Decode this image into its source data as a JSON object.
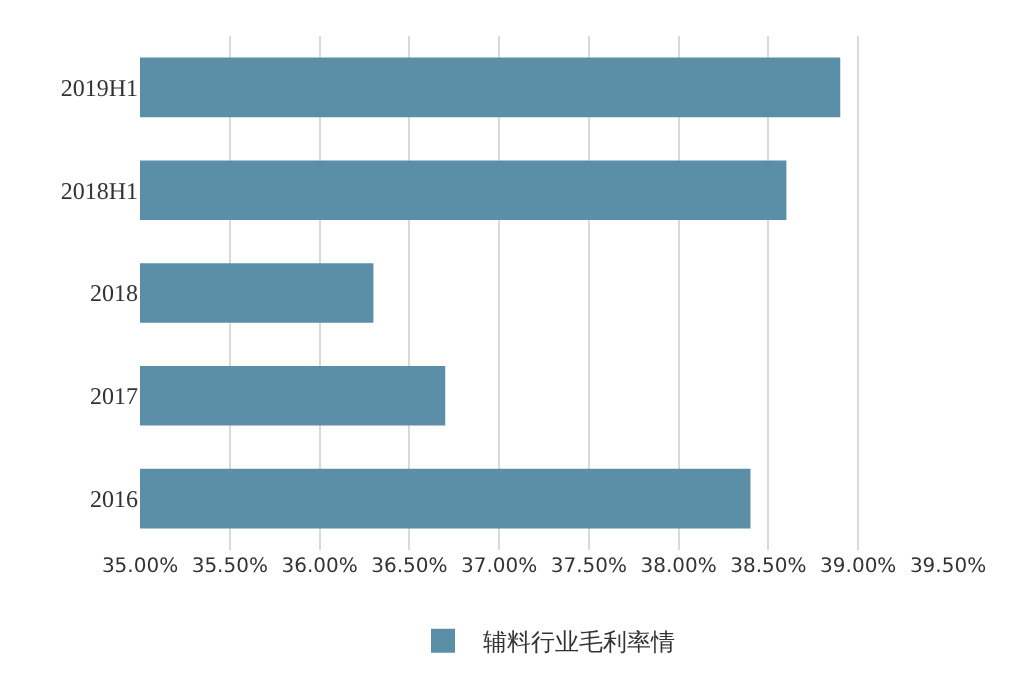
{
  "chart_data": {
    "type": "bar",
    "orientation": "horizontal",
    "categories": [
      "2019H1",
      "2018H1",
      "2018",
      "2017",
      "2016"
    ],
    "series": [
      {
        "name": "辅料行业毛利率情",
        "color": "#5b8fa8",
        "values": [
          38.9,
          38.6,
          36.3,
          36.7,
          38.4
        ]
      }
    ],
    "xlim": [
      35,
      39.5
    ],
    "xticks": [
      {
        "value": 35,
        "label": "35.00%"
      },
      {
        "value": 35.5,
        "label": "35.50%"
      },
      {
        "value": 36,
        "label": "36.00%"
      },
      {
        "value": 36.5,
        "label": "36.50%"
      },
      {
        "value": 37,
        "label": "37.00%"
      },
      {
        "value": 37.5,
        "label": "37.50%"
      },
      {
        "value": 38,
        "label": "38.00%"
      },
      {
        "value": 38.5,
        "label": "38.50%"
      },
      {
        "value": 39,
        "label": "39.00%"
      },
      {
        "value": 39.5,
        "label": "39.50%"
      }
    ],
    "grid": "x",
    "legend": "bottom"
  }
}
